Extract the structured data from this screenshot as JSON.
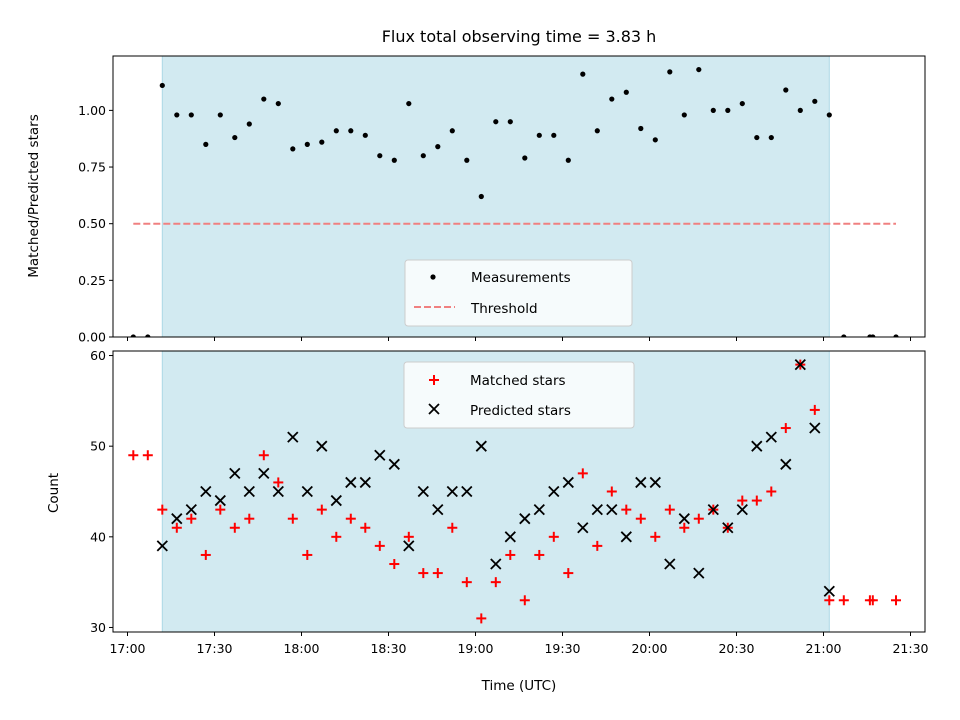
{
  "title": "Flux total observing time = 3.83 h",
  "colors": {
    "shade": "#add8e6",
    "measurement": "#000000",
    "threshold": "#f08080",
    "matched": "#ff0000",
    "predicted": "#000000"
  },
  "chart_data": [
    {
      "type": "scatter",
      "ylabel": "Matched/Predicted stars",
      "xlim": [
        "16:55",
        "21:35"
      ],
      "ylim": [
        0,
        1.24
      ],
      "yticks": [
        "0.00",
        "0.25",
        "0.50",
        "0.75",
        "1.00"
      ],
      "shaded_range": [
        "17:12",
        "21:02"
      ],
      "legend": {
        "placement": "lower-center",
        "entries": [
          "Measurements",
          "Threshold"
        ]
      },
      "threshold": {
        "name": "Threshold",
        "value": 0.5,
        "x_range": [
          "17:02",
          "21:25"
        ]
      },
      "series": [
        {
          "name": "Measurements",
          "points": [
            [
              "17:02",
              0
            ],
            [
              "17:07",
              0
            ],
            [
              "17:12",
              1.11
            ],
            [
              "17:17",
              0.98
            ],
            [
              "17:22",
              0.98
            ],
            [
              "17:27",
              0.85
            ],
            [
              "17:32",
              0.98
            ],
            [
              "17:37",
              0.88
            ],
            [
              "17:42",
              0.94
            ],
            [
              "17:47",
              1.05
            ],
            [
              "17:52",
              1.03
            ],
            [
              "17:57",
              0.83
            ],
            [
              "18:02",
              0.85
            ],
            [
              "18:07",
              0.86
            ],
            [
              "18:12",
              0.91
            ],
            [
              "18:17",
              0.91
            ],
            [
              "18:22",
              0.89
            ],
            [
              "18:27",
              0.8
            ],
            [
              "18:32",
              0.78
            ],
            [
              "18:37",
              1.03
            ],
            [
              "18:42",
              0.8
            ],
            [
              "18:47",
              0.84
            ],
            [
              "18:52",
              0.91
            ],
            [
              "18:57",
              0.78
            ],
            [
              "19:02",
              0.62
            ],
            [
              "19:07",
              0.95
            ],
            [
              "19:12",
              0.95
            ],
            [
              "19:17",
              0.79
            ],
            [
              "19:22",
              0.89
            ],
            [
              "19:27",
              0.89
            ],
            [
              "19:32",
              0.78
            ],
            [
              "19:37",
              1.16
            ],
            [
              "19:42",
              0.91
            ],
            [
              "19:47",
              1.05
            ],
            [
              "19:52",
              1.08
            ],
            [
              "19:57",
              0.92
            ],
            [
              "20:02",
              0.87
            ],
            [
              "20:07",
              1.17
            ],
            [
              "20:12",
              0.98
            ],
            [
              "20:17",
              1.18
            ],
            [
              "20:22",
              1.0
            ],
            [
              "20:27",
              1.0
            ],
            [
              "20:32",
              1.03
            ],
            [
              "20:37",
              0.88
            ],
            [
              "20:42",
              0.88
            ],
            [
              "20:47",
              1.09
            ],
            [
              "20:52",
              1.0
            ],
            [
              "20:57",
              1.04
            ],
            [
              "21:02",
              0.98
            ],
            [
              "21:07",
              0
            ],
            [
              "21:16",
              0
            ],
            [
              "21:17",
              0
            ],
            [
              "21:25",
              0
            ]
          ]
        }
      ]
    },
    {
      "type": "scatter",
      "xlabel": "Time (UTC)",
      "ylabel": "Count",
      "xlim": [
        "16:55",
        "21:35"
      ],
      "ylim": [
        29.5,
        60.5
      ],
      "yticks": [
        "30",
        "40",
        "50",
        "60"
      ],
      "xticks": [
        "17:00",
        "17:30",
        "18:00",
        "18:30",
        "19:00",
        "19:30",
        "20:00",
        "20:30",
        "21:00",
        "21:30"
      ],
      "shaded_range": [
        "17:12",
        "21:02"
      ],
      "legend": {
        "placement": "upper-center",
        "entries": [
          "Matched stars",
          "Predicted stars"
        ]
      },
      "series": [
        {
          "name": "Matched stars",
          "marker": "+",
          "points": [
            [
              "17:02",
              49
            ],
            [
              "17:07",
              49
            ],
            [
              "17:12",
              43
            ],
            [
              "17:17",
              41
            ],
            [
              "17:22",
              42
            ],
            [
              "17:27",
              38
            ],
            [
              "17:32",
              43
            ],
            [
              "17:37",
              41
            ],
            [
              "17:42",
              42
            ],
            [
              "17:47",
              49
            ],
            [
              "17:52",
              46
            ],
            [
              "17:57",
              42
            ],
            [
              "18:02",
              38
            ],
            [
              "18:07",
              43
            ],
            [
              "18:12",
              40
            ],
            [
              "18:17",
              42
            ],
            [
              "18:22",
              41
            ],
            [
              "18:27",
              39
            ],
            [
              "18:32",
              37
            ],
            [
              "18:37",
              40
            ],
            [
              "18:42",
              36
            ],
            [
              "18:47",
              36
            ],
            [
              "18:52",
              41
            ],
            [
              "18:57",
              35
            ],
            [
              "19:02",
              31
            ],
            [
              "19:07",
              35
            ],
            [
              "19:12",
              38
            ],
            [
              "19:17",
              33
            ],
            [
              "19:22",
              38
            ],
            [
              "19:27",
              40
            ],
            [
              "19:32",
              36
            ],
            [
              "19:37",
              47
            ],
            [
              "19:42",
              39
            ],
            [
              "19:47",
              45
            ],
            [
              "19:52",
              43
            ],
            [
              "19:57",
              42
            ],
            [
              "20:02",
              40
            ],
            [
              "20:07",
              43
            ],
            [
              "20:12",
              41
            ],
            [
              "20:17",
              42
            ],
            [
              "20:22",
              43
            ],
            [
              "20:27",
              41
            ],
            [
              "20:32",
              44
            ],
            [
              "20:37",
              44
            ],
            [
              "20:42",
              45
            ],
            [
              "20:47",
              52
            ],
            [
              "20:52",
              59
            ],
            [
              "20:57",
              54
            ],
            [
              "21:02",
              33
            ],
            [
              "21:07",
              33
            ],
            [
              "21:16",
              33
            ],
            [
              "21:17",
              33
            ],
            [
              "21:25",
              33
            ]
          ]
        },
        {
          "name": "Predicted stars",
          "marker": "x",
          "points": [
            [
              "17:12",
              39
            ],
            [
              "17:17",
              42
            ],
            [
              "17:22",
              43
            ],
            [
              "17:27",
              45
            ],
            [
              "17:32",
              44
            ],
            [
              "17:37",
              47
            ],
            [
              "17:42",
              45
            ],
            [
              "17:47",
              47
            ],
            [
              "17:52",
              45
            ],
            [
              "17:57",
              51
            ],
            [
              "18:02",
              45
            ],
            [
              "18:07",
              50
            ],
            [
              "18:12",
              44
            ],
            [
              "18:17",
              46
            ],
            [
              "18:22",
              46
            ],
            [
              "18:27",
              49
            ],
            [
              "18:32",
              48
            ],
            [
              "18:37",
              39
            ],
            [
              "18:42",
              45
            ],
            [
              "18:47",
              43
            ],
            [
              "18:52",
              45
            ],
            [
              "18:57",
              45
            ],
            [
              "19:02",
              50
            ],
            [
              "19:07",
              37
            ],
            [
              "19:12",
              40
            ],
            [
              "19:17",
              42
            ],
            [
              "19:22",
              43
            ],
            [
              "19:27",
              45
            ],
            [
              "19:32",
              46
            ],
            [
              "19:37",
              41
            ],
            [
              "19:42",
              43
            ],
            [
              "19:47",
              43
            ],
            [
              "19:52",
              40
            ],
            [
              "19:57",
              46
            ],
            [
              "20:02",
              46
            ],
            [
              "20:07",
              37
            ],
            [
              "20:12",
              42
            ],
            [
              "20:17",
              36
            ],
            [
              "20:22",
              43
            ],
            [
              "20:27",
              41
            ],
            [
              "20:32",
              43
            ],
            [
              "20:37",
              50
            ],
            [
              "20:42",
              51
            ],
            [
              "20:47",
              48
            ],
            [
              "20:52",
              59
            ],
            [
              "20:57",
              52
            ],
            [
              "21:02",
              34
            ]
          ]
        }
      ]
    }
  ]
}
